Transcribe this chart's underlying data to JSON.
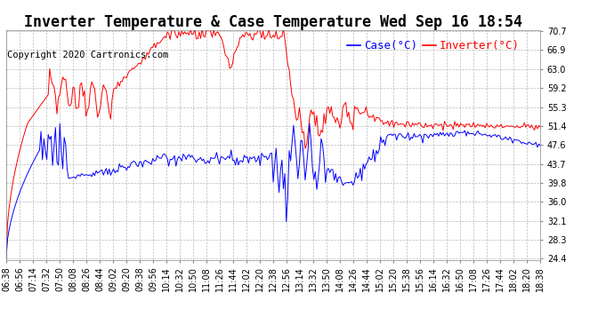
{
  "title": "Inverter Temperature & Case Temperature Wed Sep 16 18:54",
  "copyright": "Copyright 2020 Cartronics.com",
  "legend_case": "Case(°C)",
  "legend_inverter": "Inverter(°C)",
  "yticks": [
    24.4,
    28.3,
    32.1,
    36.0,
    39.8,
    43.7,
    47.6,
    51.4,
    55.3,
    59.2,
    63.0,
    66.9,
    70.7
  ],
  "xtick_labels": [
    "06:38",
    "06:56",
    "07:14",
    "07:32",
    "07:50",
    "08:08",
    "08:26",
    "08:44",
    "09:02",
    "09:20",
    "09:38",
    "09:56",
    "10:14",
    "10:32",
    "10:50",
    "11:08",
    "11:26",
    "11:44",
    "12:02",
    "12:20",
    "12:38",
    "12:56",
    "13:14",
    "13:32",
    "13:50",
    "14:08",
    "14:26",
    "14:44",
    "15:02",
    "15:20",
    "15:38",
    "15:56",
    "16:14",
    "16:32",
    "16:50",
    "17:08",
    "17:26",
    "17:44",
    "18:02",
    "18:20",
    "18:38"
  ],
  "inverter_color": "red",
  "case_color": "blue",
  "background_color": "white",
  "grid_color": "#bbbbbb",
  "title_fontsize": 12,
  "tick_fontsize": 7,
  "legend_fontsize": 9,
  "copyright_fontsize": 7.5,
  "ymin": 24.4,
  "ymax": 70.7
}
